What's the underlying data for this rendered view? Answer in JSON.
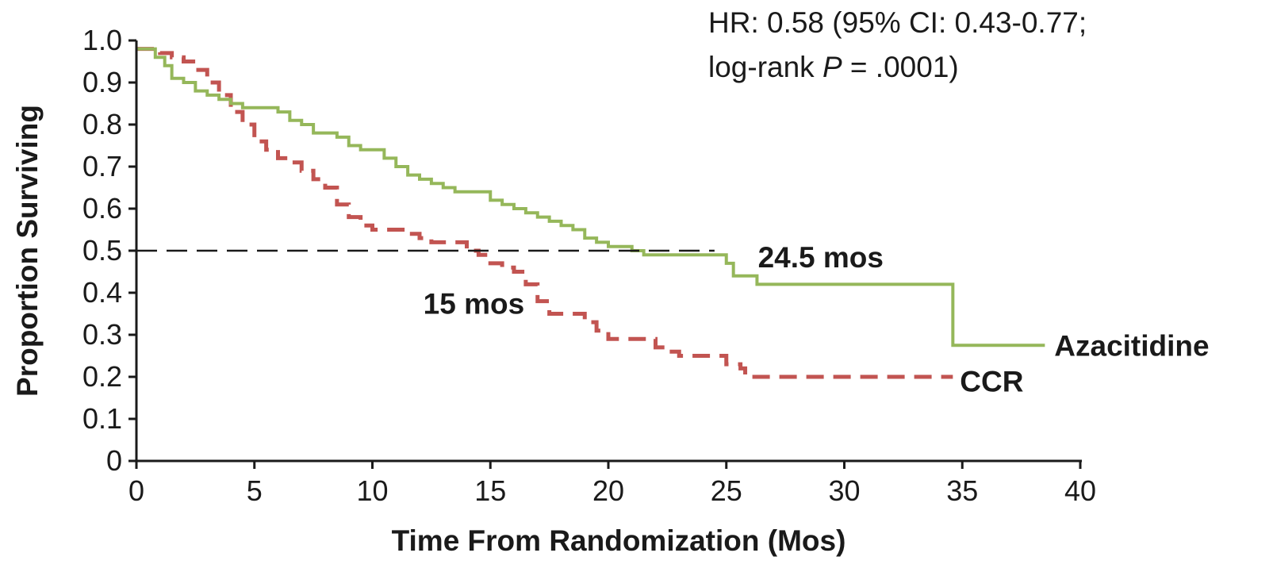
{
  "chart_data": {
    "type": "line",
    "title": "",
    "xlabel": "Time From Randomization (Mos)",
    "ylabel": "Proportion Surviving",
    "xlim": [
      0,
      40
    ],
    "ylim": [
      0,
      1.0
    ],
    "x_ticks": [
      0,
      5,
      10,
      15,
      20,
      25,
      30,
      35,
      40
    ],
    "y_ticks": [
      0,
      0.1,
      0.2,
      0.3,
      0.4,
      0.5,
      0.6,
      0.7,
      0.8,
      0.9,
      1.0
    ],
    "x_tick_labels": [
      "0",
      "5",
      "10",
      "15",
      "20",
      "25",
      "30",
      "35",
      "40"
    ],
    "y_tick_labels": [
      "0",
      "0.1",
      "0.2",
      "0.3",
      "0.4",
      "0.5",
      "0.6",
      "0.7",
      "0.8",
      "0.9",
      "1.0"
    ],
    "grid": false,
    "legend": "none",
    "stat_text": {
      "line1": "HR: 0.58 (95% CI: 0.43-0.77;",
      "line2_prefix": "log-rank ",
      "line2_p": "P",
      "line2_suffix": " = .0001)"
    },
    "reference_line": {
      "y": 0.5,
      "x_start": 0,
      "x_end": 24.5,
      "style": "dashed",
      "color": "#1a1a1a"
    },
    "annotations": [
      {
        "text": "24.5 mos",
        "x": 29,
        "y": 0.46
      },
      {
        "text": "15 mos",
        "x": 14.3,
        "y": 0.35
      }
    ],
    "series": [
      {
        "name": "Azacitidine",
        "style": "solid",
        "color": "#95b75a",
        "points": [
          [
            0,
            0.98
          ],
          [
            0.5,
            0.98
          ],
          [
            0.8,
            0.96
          ],
          [
            1.2,
            0.94
          ],
          [
            1.5,
            0.91
          ],
          [
            2.0,
            0.9
          ],
          [
            2.5,
            0.88
          ],
          [
            3.0,
            0.87
          ],
          [
            3.5,
            0.86
          ],
          [
            4.0,
            0.85
          ],
          [
            4.5,
            0.84
          ],
          [
            5.5,
            0.84
          ],
          [
            6.0,
            0.83
          ],
          [
            6.5,
            0.81
          ],
          [
            7.0,
            0.8
          ],
          [
            7.5,
            0.78
          ],
          [
            8.5,
            0.77
          ],
          [
            9.0,
            0.75
          ],
          [
            9.5,
            0.74
          ],
          [
            10.0,
            0.74
          ],
          [
            10.5,
            0.72
          ],
          [
            11.0,
            0.7
          ],
          [
            11.5,
            0.68
          ],
          [
            12.0,
            0.67
          ],
          [
            12.5,
            0.66
          ],
          [
            13.0,
            0.65
          ],
          [
            13.5,
            0.64
          ],
          [
            14.5,
            0.64
          ],
          [
            15.0,
            0.62
          ],
          [
            15.5,
            0.61
          ],
          [
            16.0,
            0.6
          ],
          [
            16.5,
            0.59
          ],
          [
            17.0,
            0.58
          ],
          [
            17.5,
            0.57
          ],
          [
            18.0,
            0.56
          ],
          [
            18.5,
            0.55
          ],
          [
            19.0,
            0.53
          ],
          [
            19.5,
            0.52
          ],
          [
            20.0,
            0.51
          ],
          [
            20.5,
            0.51
          ],
          [
            21.0,
            0.5
          ],
          [
            21.5,
            0.49
          ],
          [
            22.5,
            0.49
          ],
          [
            23.0,
            0.49
          ],
          [
            24.5,
            0.49
          ],
          [
            25.0,
            0.47
          ],
          [
            25.3,
            0.44
          ],
          [
            26.3,
            0.44
          ],
          [
            26.3,
            0.42
          ],
          [
            34.6,
            0.42
          ],
          [
            34.6,
            0.275
          ],
          [
            38.5,
            0.275
          ]
        ]
      },
      {
        "name": "CCR",
        "style": "dashed",
        "color": "#c25451",
        "points": [
          [
            0,
            0.98
          ],
          [
            0.6,
            0.98
          ],
          [
            1.0,
            0.97
          ],
          [
            1.5,
            0.96
          ],
          [
            2.0,
            0.95
          ],
          [
            2.5,
            0.93
          ],
          [
            3.0,
            0.9
          ],
          [
            3.5,
            0.87
          ],
          [
            4.0,
            0.83
          ],
          [
            4.5,
            0.8
          ],
          [
            5.0,
            0.76
          ],
          [
            5.5,
            0.74
          ],
          [
            6.0,
            0.72
          ],
          [
            6.5,
            0.71
          ],
          [
            7.0,
            0.69
          ],
          [
            7.5,
            0.67
          ],
          [
            8.0,
            0.65
          ],
          [
            8.5,
            0.61
          ],
          [
            9.0,
            0.58
          ],
          [
            9.5,
            0.56
          ],
          [
            10.0,
            0.55
          ],
          [
            11.0,
            0.55
          ],
          [
            11.5,
            0.54
          ],
          [
            12.0,
            0.53
          ],
          [
            12.5,
            0.52
          ],
          [
            13.5,
            0.52
          ],
          [
            14.0,
            0.5
          ],
          [
            14.5,
            0.49
          ],
          [
            15.0,
            0.47
          ],
          [
            15.5,
            0.46
          ],
          [
            16.0,
            0.45
          ],
          [
            16.5,
            0.42
          ],
          [
            17.0,
            0.38
          ],
          [
            17.5,
            0.35
          ],
          [
            18.5,
            0.35
          ],
          [
            19.0,
            0.33
          ],
          [
            19.5,
            0.31
          ],
          [
            20.0,
            0.29
          ],
          [
            21.5,
            0.29
          ],
          [
            22.0,
            0.27
          ],
          [
            22.5,
            0.26
          ],
          [
            23.0,
            0.25
          ],
          [
            24.5,
            0.25
          ],
          [
            25.0,
            0.23
          ],
          [
            25.6,
            0.22
          ],
          [
            25.8,
            0.2
          ],
          [
            34.6,
            0.2
          ]
        ]
      }
    ],
    "series_labels": [
      {
        "text": "Azacitidine",
        "x": 38.9,
        "y": 0.275
      },
      {
        "text": "CCR",
        "x": 34.9,
        "y": 0.19
      }
    ]
  }
}
